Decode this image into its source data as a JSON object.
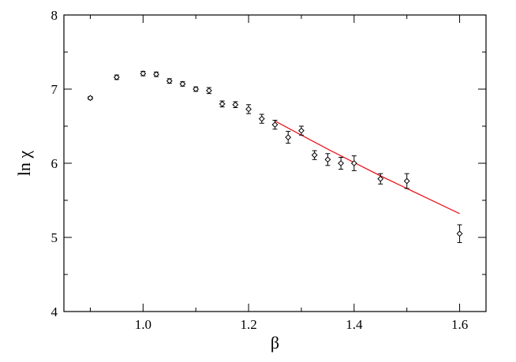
{
  "chart_data": {
    "type": "scatter",
    "xlabel": "β",
    "ylabel": "ln χ",
    "xlim": [
      0.85,
      1.65
    ],
    "ylim": [
      4,
      8
    ],
    "xticks": [
      1.0,
      1.2,
      1.4,
      1.6
    ],
    "yticks": [
      4,
      5,
      6,
      7,
      8
    ],
    "xtick_labels": [
      "1.0",
      "1.2",
      "1.4",
      "1.6"
    ],
    "ytick_labels": [
      "4",
      "5",
      "6",
      "7",
      "8"
    ],
    "grid": false,
    "legend": "none",
    "series": [
      {
        "marker": "diamond",
        "color": "#000000",
        "points": [
          {
            "x": 0.9,
            "y": 6.88,
            "err": 0.02
          },
          {
            "x": 0.95,
            "y": 7.16,
            "err": 0.03
          },
          {
            "x": 1.0,
            "y": 7.21,
            "err": 0.03
          },
          {
            "x": 1.025,
            "y": 7.2,
            "err": 0.03
          },
          {
            "x": 1.05,
            "y": 7.11,
            "err": 0.03
          },
          {
            "x": 1.075,
            "y": 7.07,
            "err": 0.03
          },
          {
            "x": 1.1,
            "y": 7.0,
            "err": 0.03
          },
          {
            "x": 1.125,
            "y": 6.98,
            "err": 0.04
          },
          {
            "x": 1.15,
            "y": 6.8,
            "err": 0.04
          },
          {
            "x": 1.175,
            "y": 6.79,
            "err": 0.04
          },
          {
            "x": 1.2,
            "y": 6.73,
            "err": 0.06
          },
          {
            "x": 1.225,
            "y": 6.6,
            "err": 0.06
          },
          {
            "x": 1.25,
            "y": 6.52,
            "err": 0.06
          },
          {
            "x": 1.275,
            "y": 6.35,
            "err": 0.08
          },
          {
            "x": 1.3,
            "y": 6.44,
            "err": 0.06
          },
          {
            "x": 1.325,
            "y": 6.11,
            "err": 0.06
          },
          {
            "x": 1.35,
            "y": 6.05,
            "err": 0.08
          },
          {
            "x": 1.375,
            "y": 6.0,
            "err": 0.08
          },
          {
            "x": 1.4,
            "y": 6.0,
            "err": 0.1
          },
          {
            "x": 1.45,
            "y": 5.79,
            "err": 0.07
          },
          {
            "x": 1.5,
            "y": 5.76,
            "err": 0.1
          },
          {
            "x": 1.6,
            "y": 5.05,
            "err": 0.12
          }
        ]
      },
      {
        "type": "line",
        "color": "#e8161b",
        "points": [
          {
            "x": 1.25,
            "y": 6.57
          },
          {
            "x": 1.3,
            "y": 6.38
          },
          {
            "x": 1.35,
            "y": 6.19
          },
          {
            "x": 1.4,
            "y": 6.01
          },
          {
            "x": 1.45,
            "y": 5.83
          },
          {
            "x": 1.5,
            "y": 5.66
          },
          {
            "x": 1.55,
            "y": 5.49
          },
          {
            "x": 1.6,
            "y": 5.32
          }
        ]
      }
    ]
  }
}
